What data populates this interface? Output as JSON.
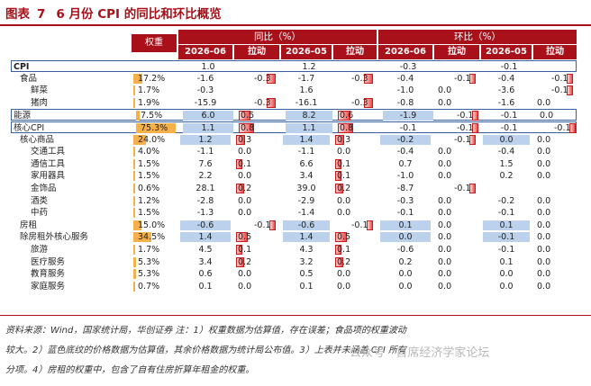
{
  "title": {
    "prefix": "图表",
    "number": "7",
    "text": "6 月份 CPI 的同比和环比概览"
  },
  "headers": {
    "weight": "权重",
    "yoy": "同比（%）",
    "mom": "环比（%）",
    "sub": [
      "2026-06",
      "拉动",
      "2026-05",
      "拉动",
      "2026-06",
      "拉动",
      "2026-05",
      "拉动"
    ]
  },
  "rows": [
    {
      "name": "CPI",
      "level": 0,
      "weight": "",
      "wbar": 0,
      "yoy6": "1.0",
      "yoyp6": "",
      "yoy5": "1.2",
      "yoyp5": "",
      "mom6": "-0.3",
      "momp6": "",
      "mom5": "-0.1",
      "momp5": "",
      "bold": true,
      "box": true
    },
    {
      "name": "食品",
      "level": 1,
      "weight": "17.2%",
      "wbar": 0.23,
      "yoy6": "-1.6",
      "yoyp6": "-0.3",
      "yoy5": "-1.7",
      "yoyp5": "-0.3",
      "mom6": "-0.4",
      "momp6": "-0.1",
      "mom5": "-0.4",
      "momp5": "-0.1"
    },
    {
      "name": "鲜菜",
      "level": 2,
      "weight": "1.7%",
      "wbar": 0.02,
      "yoy6": "-0.3",
      "yoyp6": "",
      "yoy5": "1.6",
      "yoyp5": "",
      "mom6": "-1.0",
      "momp6": "0.0",
      "mom5": "-3.6",
      "momp5": "-0.1"
    },
    {
      "name": "猪肉",
      "level": 2,
      "weight": "1.9%",
      "wbar": 0.03,
      "yoy6": "-15.9",
      "yoyp6": "-0.3",
      "yoy5": "-16.1",
      "yoyp5": "-0.3",
      "mom6": "-0.8",
      "momp6": "0.0",
      "mom5": "-1.6",
      "momp5": "0.0"
    },
    {
      "name": "能源",
      "level": 0,
      "weight": "7.5%",
      "wbar": 0.1,
      "yoy6": "6.0",
      "yoyp6": "0.5",
      "yoy5": "8.2",
      "yoyp5": "0.6",
      "mom6": "-1.9",
      "momp6": "-0.1",
      "mom5": "-0.1",
      "momp5": "0.0",
      "box": true
    },
    {
      "name": "核心CPI",
      "level": 0,
      "weight": "75.3%",
      "wbar": 1.0,
      "yoy6": "1.1",
      "yoyp6": "0.8",
      "yoy5": "1.1",
      "yoyp5": "0.8",
      "mom6": "-0.1",
      "momp6": "-0.1",
      "mom5": "-0.1",
      "momp5": "-0.1",
      "box": true
    },
    {
      "name": "核心商品",
      "level": 1,
      "weight": "24.0%",
      "wbar": 0.32,
      "yoy6": "1.2",
      "yoyp6": "0.3",
      "yoy5": "1.4",
      "yoyp5": "0.3",
      "mom6": "-0.2",
      "momp6": "-0.1",
      "mom5": "0.0",
      "momp5": "0.0"
    },
    {
      "name": "交通工具",
      "level": 2,
      "weight": "4.0%",
      "wbar": 0.05,
      "yoy6": "-1.1",
      "yoyp6": "0.0",
      "yoy5": "-1.1",
      "yoyp5": "0.0",
      "mom6": "-0.4",
      "momp6": "0.0",
      "mom5": "-0.4",
      "momp5": "0.0"
    },
    {
      "name": "通信工具",
      "level": 2,
      "weight": "1.5%",
      "wbar": 0.02,
      "yoy6": "7.6",
      "yoyp6": "0.1",
      "yoy5": "6.6",
      "yoyp5": "0.1",
      "mom6": "0.7",
      "momp6": "0.0",
      "mom5": "1.5",
      "momp5": "0.0"
    },
    {
      "name": "家用器具",
      "level": 2,
      "weight": "1.5%",
      "wbar": 0.02,
      "yoy6": "2.2",
      "yoyp6": "0.0",
      "yoy5": "3.4",
      "yoyp5": "0.1",
      "mom6": "-1.0",
      "momp6": "0.0",
      "mom5": "0.2",
      "momp5": "0.0"
    },
    {
      "name": "金饰品",
      "level": 2,
      "weight": "0.6%",
      "wbar": 0.01,
      "yoy6": "28.1",
      "yoyp6": "0.2",
      "yoy5": "39.0",
      "yoyp5": "0.2",
      "mom6": "-8.7",
      "momp6": "-0.1",
      "mom5": "",
      "momp5": ""
    },
    {
      "name": "酒类",
      "level": 2,
      "weight": "1.2%",
      "wbar": 0.02,
      "yoy6": "-2.8",
      "yoyp6": "0.0",
      "yoy5": "-2.9",
      "yoyp5": "0.0",
      "mom6": "-0.3",
      "momp6": "0.0",
      "mom5": "-0.2",
      "momp5": "0.0"
    },
    {
      "name": "中药",
      "level": 2,
      "weight": "1.5%",
      "wbar": 0.02,
      "yoy6": "-1.3",
      "yoyp6": "0.0",
      "yoy5": "-1.4",
      "yoyp5": "0.0",
      "mom6": "-0.1",
      "momp6": "0.0",
      "mom5": "-0.1",
      "momp5": "0.0"
    },
    {
      "name": "房租",
      "level": 1,
      "weight": "15.0%",
      "wbar": 0.2,
      "yoy6": "-0.6",
      "yoyp6": "-0.1",
      "yoy5": "-0.6",
      "yoyp5": "-0.1",
      "mom6": "0.1",
      "momp6": "0.0",
      "mom5": "0.1",
      "momp5": "0.0"
    },
    {
      "name": "除房租外核心服务",
      "level": 1,
      "weight": "34.5%",
      "wbar": 0.46,
      "yoy6": "1.4",
      "yoyp6": "0.5",
      "yoy5": "1.4",
      "yoyp5": "0.5",
      "mom6": "0.0",
      "momp6": "0.0",
      "mom5": "-0.1",
      "momp5": "0.0"
    },
    {
      "name": "旅游",
      "level": 2,
      "weight": "1.7%",
      "wbar": 0.02,
      "yoy6": "4.5",
      "yoyp6": "0.1",
      "yoy5": "4.3",
      "yoyp5": "0.1",
      "mom6": "-0.6",
      "momp6": "0.0",
      "mom5": "-0.1",
      "momp5": "0.0"
    },
    {
      "name": "医疗服务",
      "level": 2,
      "weight": "5.3%",
      "wbar": 0.07,
      "yoy6": "3.4",
      "yoyp6": "0.2",
      "yoy5": "3.2",
      "yoyp5": "0.2",
      "mom6": "0.2",
      "momp6": "0.0",
      "mom5": "0.1",
      "momp5": "0.0"
    },
    {
      "name": "教育服务",
      "level": 2,
      "weight": "5.3%",
      "wbar": 0.07,
      "yoy6": "0.6",
      "yoyp6": "0.0",
      "yoy5": "0.5",
      "yoyp5": "0.0",
      "mom6": "0.0",
      "momp6": "0.0",
      "mom5": "0.0",
      "momp5": "0.0"
    },
    {
      "name": "家庭服务",
      "level": 2,
      "weight": "0.7%",
      "wbar": 0.01,
      "yoy6": "0.1",
      "yoyp6": "0.0",
      "yoy5": "0.1",
      "yoyp5": "0.0",
      "mom6": "0.0",
      "momp6": "0.0",
      "mom5": "0.0",
      "momp5": "0.0"
    }
  ],
  "blue_cells": [
    "6.0",
    "8.2",
    "1.1",
    "1.2",
    "1.4",
    "-1.9",
    "-0.1",
    "-0.2",
    "0.0",
    "-0.6",
    "0.1"
  ],
  "notes": [
    "资料来源：Wind，国家统计局，华创证券 注：1）权重数据为估算值，存在误差；食品项的权重波动",
    "较大。2）蓝色底纹的价格数据为估算值，其余价格数据为统计局公布值。3）上表并未涵盖 CPI 所有",
    "分项。4）房租的权重中，包含了自有住房折算年租金的权重。"
  ],
  "watermark": "公众号 · 首席经济学家论坛",
  "colors": {
    "accent": "#a8101a",
    "weight_bar": "#f5b04a",
    "estimate_fill": "#bcd2ec",
    "pull_bar": "#f04a4a",
    "box": "#3a5fa0"
  }
}
